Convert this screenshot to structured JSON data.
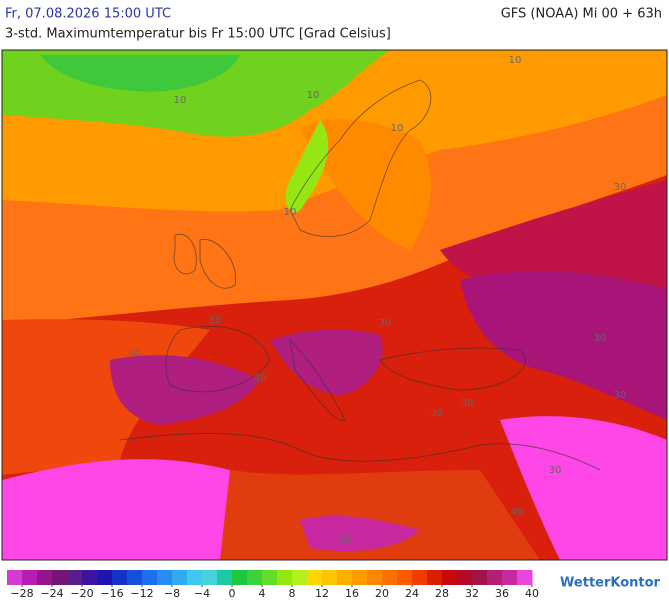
{
  "header": {
    "title": "Fr, 07.08.2026 15:00 UTC",
    "model": "GFS (NOAA) Mi 00 + 63h",
    "subtitle": "3-std. Maximumtemperatur bis Fr 15:00 UTC [Grad Celsius]"
  },
  "map": {
    "contour_labels": [
      "10",
      "10",
      "10",
      "10",
      "10",
      "30",
      "30",
      "30",
      "30",
      "30",
      "30",
      "30",
      "30",
      "30",
      "30",
      "40",
      "30"
    ]
  },
  "legend": {
    "lim": [
      -30,
      40
    ],
    "colors": [
      "#d23cd2",
      "#b41eb4",
      "#96148c",
      "#781478",
      "#5a1e8c",
      "#3c14a0",
      "#1e14b4",
      "#1432c8",
      "#1450dc",
      "#1e6ef0",
      "#288cf0",
      "#32aaf0",
      "#3cc8f0",
      "#46d2dc",
      "#1ec8a0",
      "#1ec83c",
      "#3cd23c",
      "#64dc28",
      "#96e614",
      "#b4f01e",
      "#ffd700",
      "#ffc300",
      "#ffaf00",
      "#ff9b00",
      "#ff8700",
      "#ff6e00",
      "#ff5a00",
      "#f03c00",
      "#dc1e00",
      "#c80a0a",
      "#b40a28",
      "#a01446",
      "#b41e78",
      "#c828a0",
      "#e646dc"
    ],
    "ticks": [
      {
        "value": -28,
        "label": "−28"
      },
      {
        "value": -24,
        "label": "−24"
      },
      {
        "value": -20,
        "label": "−20"
      },
      {
        "value": -16,
        "label": "−16"
      },
      {
        "value": -12,
        "label": "−12"
      },
      {
        "value": -8,
        "label": "−8"
      },
      {
        "value": -4,
        "label": "−4"
      },
      0,
      4,
      8,
      12,
      16,
      20,
      24,
      28,
      32,
      36,
      40
    ]
  },
  "logo": "WetterKontor"
}
